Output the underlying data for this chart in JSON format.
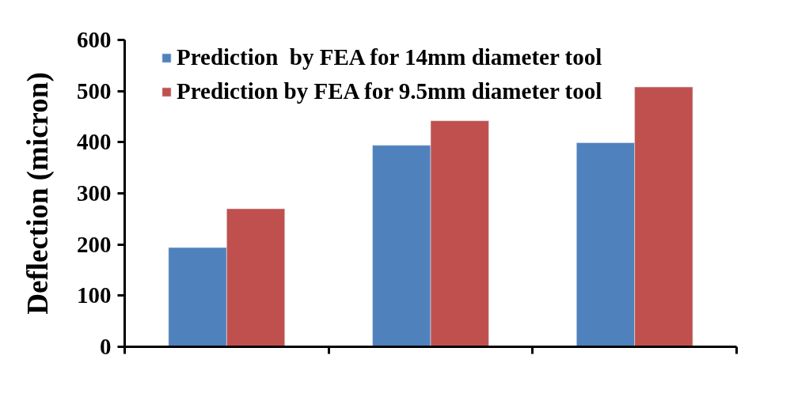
{
  "chart_data": {
    "type": "bar",
    "ylabel": "Deflection (micron)",
    "categories": [
      null,
      null,
      null
    ],
    "series": [
      {
        "name": "Prediction  by FEA for 14mm diameter tool",
        "color": "#4f81bd",
        "values": [
          194,
          394,
          399
        ]
      },
      {
        "name": "Prediction by FEA for 9.5mm diameter tool",
        "color": "#c0504d",
        "values": [
          270,
          442,
          508
        ]
      }
    ],
    "ylim": [
      0,
      600
    ],
    "yticks": [
      0,
      100,
      200,
      300,
      400,
      500,
      600
    ],
    "legend": "top left",
    "tick_labels": "y"
  }
}
